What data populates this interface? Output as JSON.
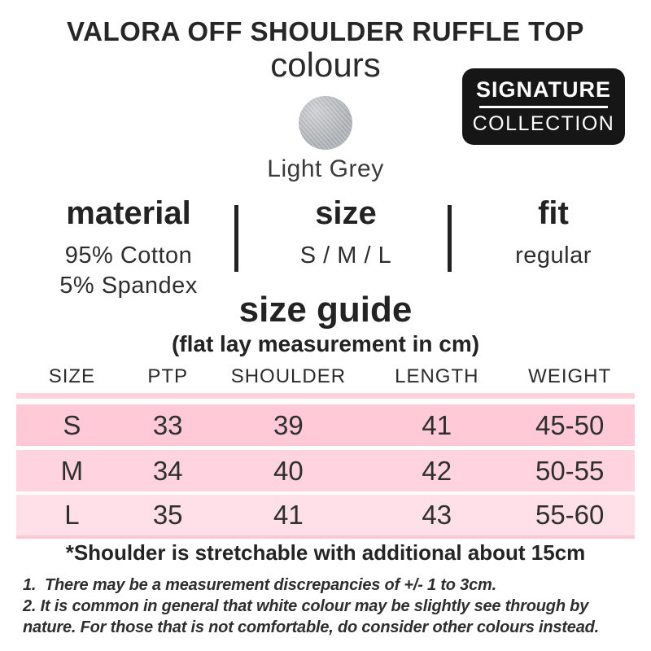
{
  "title": "VALORA OFF SHOULDER RUFFLE TOP",
  "subtitle": "colours",
  "badge": {
    "line1": "SIGNATURE",
    "line2": "COLLECTION",
    "background": "#161616"
  },
  "swatch": {
    "name": "Light Grey",
    "color": "#b2b6ba"
  },
  "specs": [
    {
      "heading": "material",
      "lines": [
        "95% Cotton",
        "5% Spandex"
      ]
    },
    {
      "heading": "size",
      "lines": [
        "S / M / L"
      ]
    },
    {
      "heading": "fit",
      "lines": [
        "regular"
      ]
    }
  ],
  "size_guide": {
    "title": "size guide",
    "subtitle": "(flat lay measurement in cm)",
    "columns": [
      "SIZE",
      "PTP",
      "SHOULDER",
      "LENGTH",
      "WEIGHT"
    ],
    "rows": [
      {
        "size": "S",
        "ptp": "33",
        "shoulder": "39",
        "length": "41",
        "weight": "45-50"
      },
      {
        "size": "M",
        "ptp": "34",
        "shoulder": "40",
        "length": "42",
        "weight": "50-55"
      },
      {
        "size": "L",
        "ptp": "35",
        "shoulder": "41",
        "length": "43",
        "weight": "55-60"
      }
    ],
    "row_colors": [
      "#ffc9d7",
      "#ffd4e0",
      "#ffdfe8"
    ],
    "strip_color": "#ffd3de"
  },
  "notes": {
    "highlight": "*Shoulder is stretchable with additional about 15cm",
    "lines": [
      "1.  There may be a measurement discrepancies of +/- 1 to 3cm.",
      "2. It is common in general that white colour may be slightly see through by",
      "nature. For those that is not comfortable, do consider other colours instead."
    ]
  }
}
